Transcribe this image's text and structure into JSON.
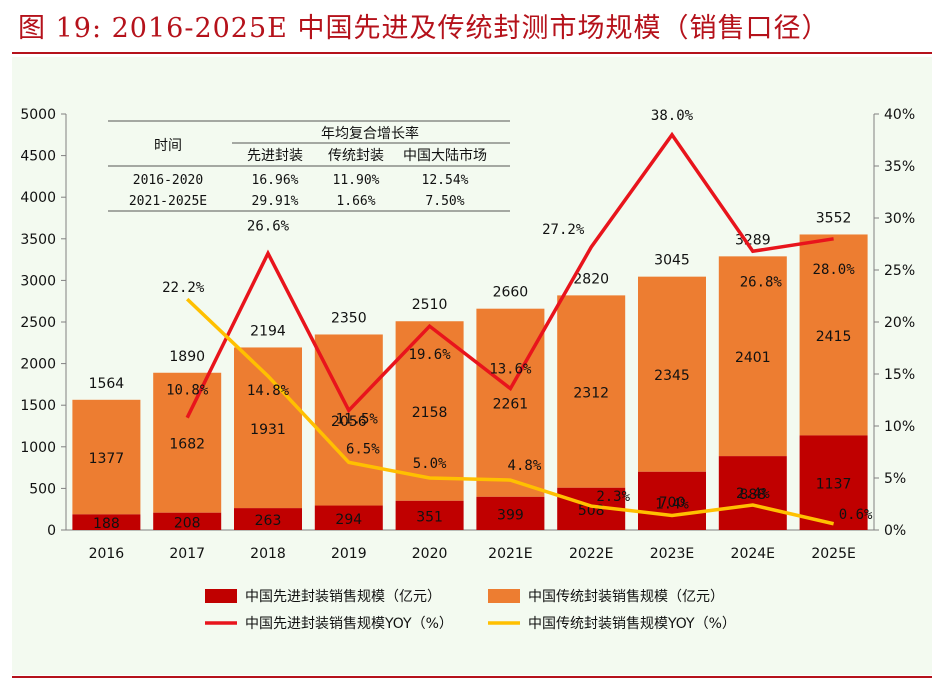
{
  "figure": {
    "title": "图 19:   2016-2025E 中国先进及传统封测市场规模（销售口径）"
  },
  "colors": {
    "title": "#b5121b",
    "advanced_bar": "#c00000",
    "traditional_bar": "#ed7d31",
    "advanced_yoy_line": "#e8141c",
    "traditional_yoy_line": "#ffc000",
    "plot_background": "#f3faf0"
  },
  "growth_table": {
    "title": "年均复合增长率",
    "row_header": "时间",
    "columns": [
      "先进封装",
      "传统封装",
      "中国大陆市场"
    ],
    "rows": [
      {
        "period": "2016-2020",
        "values": [
          "16.96%",
          "11.90%",
          "12.54%"
        ]
      },
      {
        "period": "2021-2025E",
        "values": [
          "29.91%",
          "1.66%",
          "7.50%"
        ]
      }
    ]
  },
  "chart_data": {
    "type": "bar",
    "stacked": true,
    "categories": [
      "2016",
      "2017",
      "2018",
      "2019",
      "2020",
      "2021E",
      "2022E",
      "2023E",
      "2024E",
      "2025E"
    ],
    "series": [
      {
        "name": "中国先进封装销售规模（亿元）",
        "type": "bar",
        "axis": "left",
        "values": [
          188,
          208,
          263,
          294,
          351,
          399,
          508,
          700,
          888,
          1137
        ]
      },
      {
        "name": "中国传统封装销售规模（亿元）",
        "type": "bar",
        "axis": "left",
        "values": [
          1377,
          1682,
          1931,
          2056,
          2158,
          2261,
          2312,
          2345,
          2401,
          2415
        ]
      },
      {
        "name": "中国先进封装销售规模YOY（%）",
        "type": "line",
        "axis": "right",
        "x": [
          "2017",
          "2018",
          "2019",
          "2020",
          "2021E",
          "2022E",
          "2023E",
          "2024E",
          "2025E"
        ],
        "values": [
          10.8,
          26.6,
          11.5,
          19.6,
          13.6,
          27.2,
          38.0,
          26.8,
          28.0
        ],
        "labels": [
          "10.8%",
          "26.6%",
          "11.5%",
          "19.6%",
          "13.6%",
          "27.2%",
          "38.0%",
          "26.8%",
          "28.0%"
        ]
      },
      {
        "name": "中国传统封装销售规模YOY（%）",
        "type": "line",
        "axis": "right",
        "x": [
          "2017",
          "2018",
          "2019",
          "2020",
          "2021E",
          "2022E",
          "2023E",
          "2024E",
          "2025E"
        ],
        "values": [
          22.2,
          14.8,
          6.5,
          5.0,
          4.8,
          2.3,
          1.4,
          2.4,
          0.6
        ],
        "labels": [
          "22.2%",
          "14.8%",
          "6.5%",
          "5.0%",
          "4.8%",
          "2.3%",
          "1.4%",
          "2.4%",
          "0.6%"
        ]
      }
    ],
    "totals": [
      1564,
      1890,
      2194,
      2350,
      2510,
      2660,
      2820,
      3045,
      3289,
      3552
    ],
    "y_left": {
      "min": 0,
      "max": 5000,
      "ticks": [
        "0",
        "500",
        "1000",
        "1500",
        "2000",
        "2500",
        "3000",
        "3500",
        "4000",
        "4500",
        "5000"
      ]
    },
    "y_right": {
      "min": 0,
      "max": 40,
      "ticks": [
        "0%",
        "5%",
        "10%",
        "15%",
        "20%",
        "25%",
        "30%",
        "35%",
        "40%"
      ]
    },
    "grid": false,
    "legend_position": "bottom"
  }
}
